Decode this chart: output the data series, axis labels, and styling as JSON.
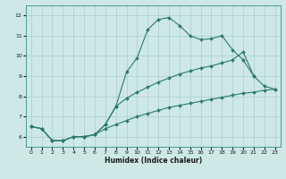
{
  "xlabel": "Humidex (Indice chaleur)",
  "bg_color": "#cde8e5",
  "grid_color": "#aacfcb",
  "line_color": "#2d7a6e",
  "xlim": [
    -0.5,
    23.5
  ],
  "ylim": [
    5.5,
    12.5
  ],
  "xticks": [
    0,
    1,
    2,
    3,
    4,
    5,
    6,
    7,
    8,
    9,
    10,
    11,
    12,
    13,
    14,
    15,
    16,
    17,
    18,
    19,
    20,
    21,
    22,
    23
  ],
  "yticks": [
    6,
    7,
    8,
    9,
    10,
    11,
    12
  ],
  "line1_x": [
    0,
    1,
    2,
    3,
    4,
    5,
    6,
    7,
    8,
    9,
    10,
    11,
    12,
    13,
    14,
    15,
    16,
    17,
    18,
    19,
    20,
    21
  ],
  "line1_y": [
    6.5,
    6.4,
    5.8,
    5.8,
    6.0,
    6.0,
    6.1,
    6.6,
    7.5,
    9.2,
    9.9,
    11.3,
    11.8,
    11.9,
    11.5,
    11.0,
    10.8,
    10.85,
    11.0,
    10.3,
    9.8,
    9.0
  ],
  "line2_x": [
    0,
    1,
    2,
    3,
    4,
    5,
    6,
    7,
    8,
    9,
    10,
    11,
    12,
    13,
    14,
    15,
    16,
    17,
    18,
    19,
    20,
    21,
    22,
    23
  ],
  "line2_y": [
    6.5,
    6.4,
    5.8,
    5.8,
    6.0,
    6.0,
    6.1,
    6.6,
    7.5,
    7.9,
    8.2,
    8.45,
    8.7,
    8.9,
    9.1,
    9.25,
    9.4,
    9.5,
    9.65,
    9.8,
    10.2,
    9.0,
    8.5,
    8.35
  ],
  "line3_x": [
    0,
    1,
    2,
    3,
    4,
    5,
    6,
    7,
    8,
    9,
    10,
    11,
    12,
    13,
    14,
    15,
    16,
    17,
    18,
    19,
    20,
    21,
    22,
    23
  ],
  "line3_y": [
    6.5,
    6.4,
    5.8,
    5.8,
    6.0,
    6.0,
    6.1,
    6.4,
    6.6,
    6.8,
    7.0,
    7.15,
    7.3,
    7.45,
    7.55,
    7.65,
    7.75,
    7.85,
    7.95,
    8.05,
    8.15,
    8.2,
    8.3,
    8.35
  ]
}
